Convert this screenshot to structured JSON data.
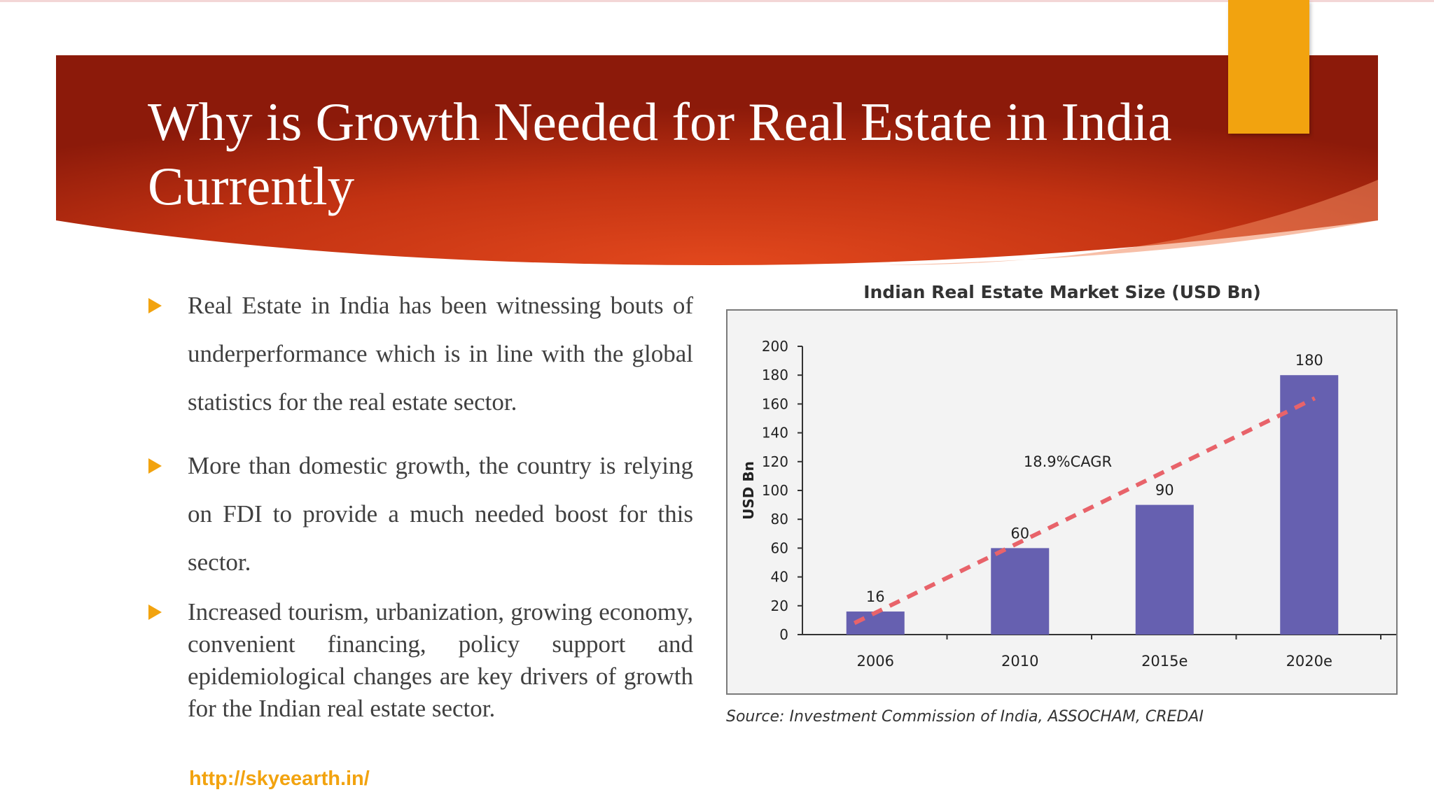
{
  "slide": {
    "title": "Why is Growth Needed for Real Estate in India Currently",
    "url": "http://skyeearth.in/",
    "colors": {
      "banner_dark": "#8c1a0a",
      "banner_light": "#e0461c",
      "accent": "#f2a30f"
    }
  },
  "bullets": [
    {
      "text": "Real Estate in India has been witnessing bouts of underperformance which is in line with the global statistics for the real estate sector."
    },
    {
      "text": "More than domestic growth, the country is relying on FDI to provide a much needed boost for this sector."
    },
    {
      "text": "Increased tourism, urbanization, growing economy, convenient financing, policy support and epidemiological changes are key drivers of growth for the Indian real estate sector."
    }
  ],
  "chart_data": {
    "type": "bar",
    "title": "Indian Real Estate Market Size (USD Bn)",
    "ylabel": "USD Bn",
    "xlabel": "",
    "ylim": [
      0,
      200
    ],
    "yticks": [
      0,
      20,
      40,
      60,
      80,
      100,
      120,
      140,
      160,
      180,
      200
    ],
    "categories": [
      "2006",
      "2010",
      "2015e",
      "2020e"
    ],
    "values": [
      16,
      60,
      90,
      180
    ],
    "data_labels": [
      "16",
      "60",
      "90",
      "180"
    ],
    "bar_color": "#6660b0",
    "trendline": {
      "from": 8,
      "to": 164,
      "color": "#e8636a",
      "style": "dashed"
    },
    "annotation": "18.9%CAGR",
    "source": "Source: Investment Commission of India, ASSOCHAM, CREDAI",
    "grid": false
  }
}
